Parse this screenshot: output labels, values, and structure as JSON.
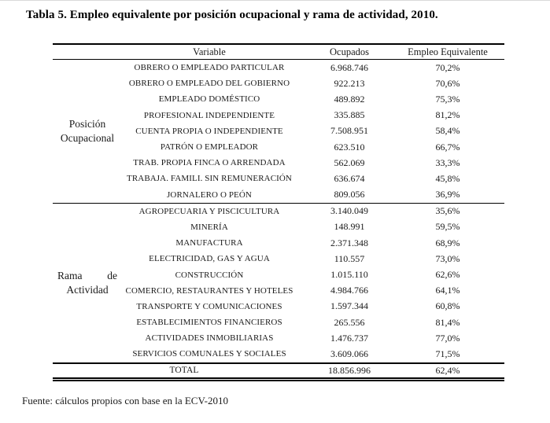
{
  "page": {
    "title": "Tabla 5. Empleo equivalente por posición ocupacional y rama de actividad, 2010.",
    "source_note": "Fuente: cálculos propios con base en la ECV-2010"
  },
  "table": {
    "columns": {
      "variable": "Variable",
      "ocupados": "Ocupados",
      "empleo_equivalente": "Empleo Equivalente"
    },
    "groups": [
      {
        "label_line1": "Posición",
        "label_line2": "Ocupacional",
        "rows": [
          {
            "variable": "OBRERO O EMPLEADO PARTICULAR",
            "ocupados": "6.968.746",
            "empleo": "70,2%"
          },
          {
            "variable": "OBRERO O EMPLEADO DEL GOBIERNO",
            "ocupados": "922.213",
            "empleo": "70,6%"
          },
          {
            "variable": "EMPLEADO DOMÉSTICO",
            "ocupados": "489.892",
            "empleo": "75,3%"
          },
          {
            "variable": "PROFESIONAL INDEPENDIENTE",
            "ocupados": "335.885",
            "empleo": "81,2%"
          },
          {
            "variable": "CUENTA PROPIA O INDEPENDIENTE",
            "ocupados": "7.508.951",
            "empleo": "58,4%"
          },
          {
            "variable": "PATRÓN O EMPLEADOR",
            "ocupados": "623.510",
            "empleo": "66,7%"
          },
          {
            "variable": "TRAB. PROPIA FINCA O ARRENDADA",
            "ocupados": "562.069",
            "empleo": "33,3%"
          },
          {
            "variable": "TRABAJA. FAMILI. SIN REMUNERACIÓN",
            "ocupados": "636.674",
            "empleo": "45,8%"
          },
          {
            "variable": "JORNALERO O PEÓN",
            "ocupados": "809.056",
            "empleo": "36,9%"
          }
        ]
      },
      {
        "label_line1": "Rama de",
        "label_line2": "Actividad",
        "rows": [
          {
            "variable": "AGROPECUARIA Y PISCICULTURA",
            "ocupados": "3.140.049",
            "empleo": "35,6%"
          },
          {
            "variable": "MINERÍA",
            "ocupados": "148.991",
            "empleo": "59,5%"
          },
          {
            "variable": "MANUFACTURA",
            "ocupados": "2.371.348",
            "empleo": "68,9%"
          },
          {
            "variable": "ELECTRICIDAD, GAS Y AGUA",
            "ocupados": "110.557",
            "empleo": "73,0%"
          },
          {
            "variable": "CONSTRUCCIÓN",
            "ocupados": "1.015.110",
            "empleo": "62,6%"
          },
          {
            "variable": "COMERCIO, RESTAURANTES Y HOTELES",
            "ocupados": "4.984.766",
            "empleo": "64,1%"
          },
          {
            "variable": "TRANSPORTE Y COMUNICACIONES",
            "ocupados": "1.597.344",
            "empleo": "60,8%"
          },
          {
            "variable": "ESTABLECIMIENTOS FINANCIEROS",
            "ocupados": "265.556",
            "empleo": "81,4%"
          },
          {
            "variable": "ACTIVIDADES INMOBILIARIAS",
            "ocupados": "1.476.737",
            "empleo": "77,0%"
          },
          {
            "variable": "SERVICIOS COMUNALES Y SOCIALES",
            "ocupados": "3.609.066",
            "empleo": "71,5%"
          }
        ]
      }
    ],
    "total": {
      "label": "TOTAL",
      "ocupados": "18.856.996",
      "empleo": "62,4%"
    }
  }
}
